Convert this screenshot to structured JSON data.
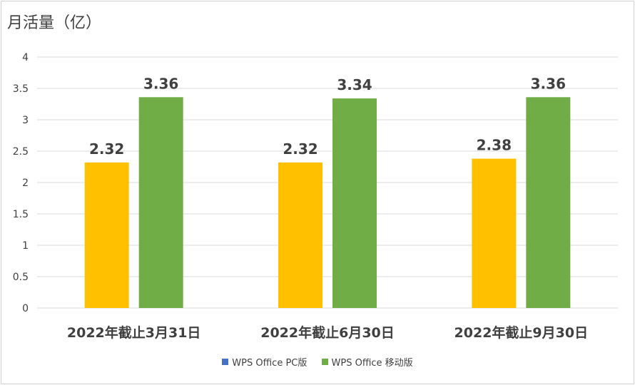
{
  "chart_data": {
    "type": "bar",
    "title": "月活量（亿）",
    "categories": [
      "2022年截止3月31日",
      "2022年截止6月30日",
      "2022年截止9月30日"
    ],
    "series": [
      {
        "name": "WPS Office PC版",
        "values": [
          2.32,
          2.32,
          2.38
        ],
        "color": "#FFC000",
        "legend_color": "#4472C4"
      },
      {
        "name": "WPS Office 移动版",
        "values": [
          3.36,
          3.34,
          3.36
        ],
        "color": "#70AD47",
        "legend_color": "#70AD47"
      }
    ],
    "data_labels": [
      [
        "2.32",
        "2.32",
        "2.38"
      ],
      [
        "3.36",
        "3.34",
        "3.36"
      ]
    ],
    "yticks": [
      "0",
      "0.5",
      "1",
      "1.5",
      "2",
      "2.5",
      "3",
      "3.5",
      "4"
    ],
    "ylim": [
      0,
      4
    ],
    "grid": true,
    "legend_position": "bottom"
  }
}
